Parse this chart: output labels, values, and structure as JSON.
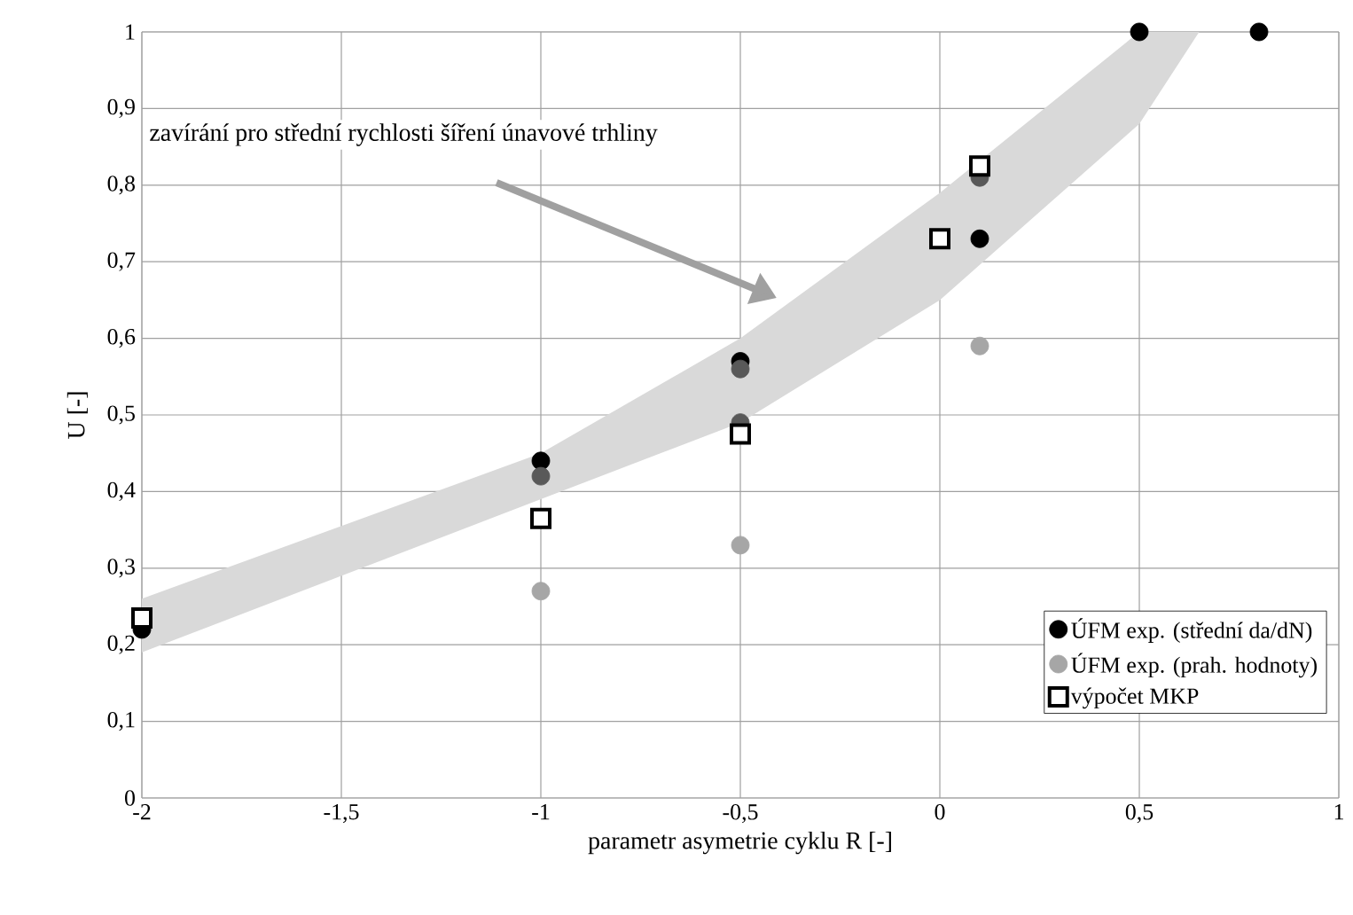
{
  "chart_data": {
    "type": "scatter",
    "xlabel": "parametr asymetrie cyklu R [-]",
    "ylabel": "U [-]",
    "xlim": [
      -2,
      1
    ],
    "ylim": [
      0,
      1
    ],
    "xticks": [
      -2,
      {
        "value": -1.5,
        "label": "-1,5"
      },
      -1,
      {
        "value": -0.5,
        "label": "-0,5"
      },
      0,
      {
        "value": 0.5,
        "label": "0,5"
      },
      1
    ],
    "yticks": [
      0,
      {
        "value": 0.1,
        "label": "0,1"
      },
      {
        "value": 0.2,
        "label": "0,2"
      },
      {
        "value": 0.3,
        "label": "0,3"
      },
      {
        "value": 0.4,
        "label": "0,4"
      },
      {
        "value": 0.5,
        "label": "0,5"
      },
      {
        "value": 0.6,
        "label": "0,6"
      },
      {
        "value": 0.7,
        "label": "0,7"
      },
      {
        "value": 0.8,
        "label": "0,8"
      },
      {
        "value": 0.9,
        "label": "0,9"
      },
      1
    ],
    "grid": true,
    "legend": "bottom right",
    "annotations": [
      "zavírání pro střední rychlosti šíření únavové trhliny"
    ],
    "series": [
      {
        "type": "area",
        "color": "#d9d9d9",
        "x": [
          -2,
          -1,
          -0.5,
          0,
          0.5,
          0.65
        ],
        "values": [
          null,
          null,
          null,
          null,
          null,
          null
        ],
        "lower": [
          0.19,
          0.39,
          0.49,
          0.65,
          0.88,
          1
        ],
        "upper": [
          0.26,
          0.45,
          0.6,
          0.79,
          1,
          1
        ]
      },
      {
        "name": "ÚFM exp. (střední da/dN)",
        "color": "#000000",
        "marker": "circle",
        "x": [
          -2,
          -1,
          -0.5,
          0.1,
          0.5,
          0.8
        ],
        "values": [
          0.22,
          0.44,
          0.57,
          0.73,
          1,
          1
        ]
      },
      {
        "name": "ÚFM exp. (prah. hodnoty)",
        "color": "#a6a6a6",
        "marker": "circle",
        "x": [
          -1,
          -0.5,
          0.1
        ],
        "values": [
          0.27,
          0.33,
          0.59
        ]
      },
      {
        "color": "#595959",
        "marker": "circle",
        "x": [
          -1,
          -0.5,
          -0.5,
          0.1
        ],
        "values": [
          0.42,
          0.56,
          0.49,
          0.81
        ]
      },
      {
        "name": "výpočet  MKP",
        "color": "#000000",
        "marker": "square",
        "x": [
          -2,
          -1,
          -0.5,
          0,
          0.1
        ],
        "values": [
          0.235,
          0.365,
          0.475,
          0.73,
          0.825
        ]
      }
    ]
  }
}
